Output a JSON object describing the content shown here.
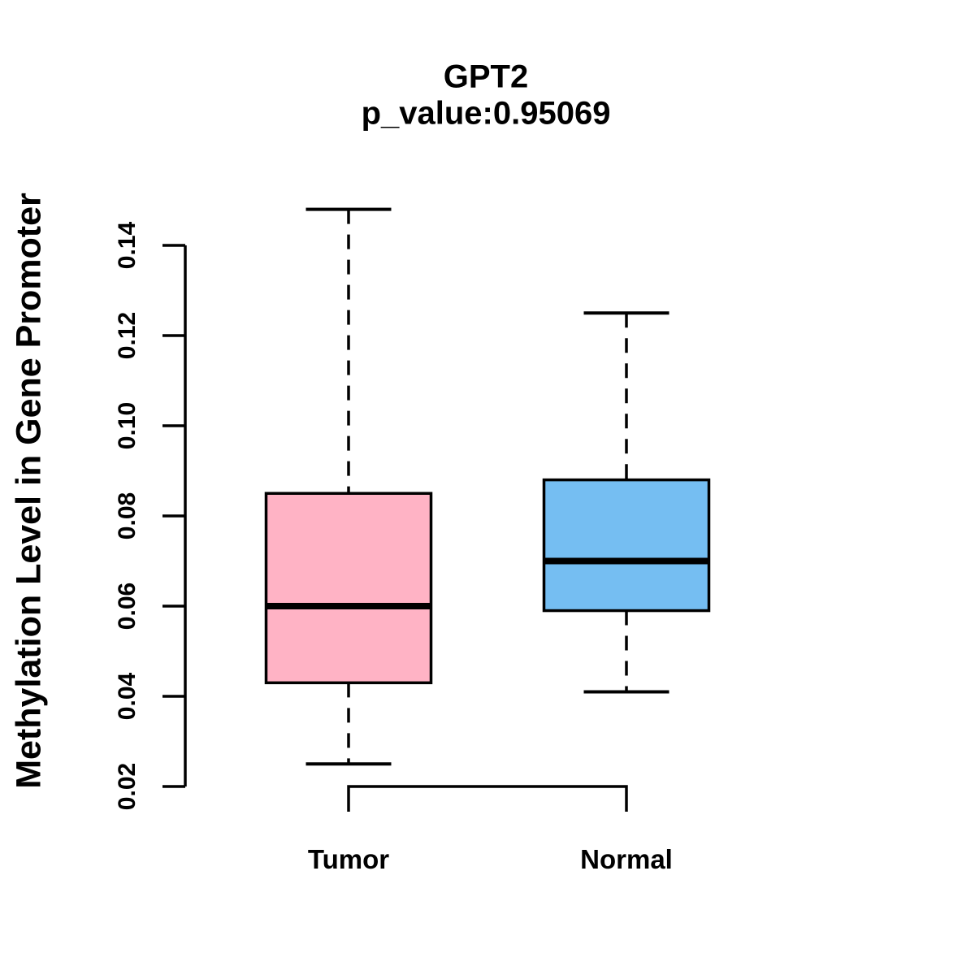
{
  "chart_data": {
    "type": "boxplot",
    "title": "GPT2",
    "subtitle": "p_value:0.95069",
    "gene": "GPT2",
    "p_value": 0.95069,
    "ylabel": "Methylation Level in Gene Promoter",
    "xlabel": "",
    "categories": [
      "Tumor",
      "Normal"
    ],
    "y_axis": {
      "ticks": [
        0.02,
        0.04,
        0.06,
        0.08,
        0.1,
        0.12,
        0.14
      ],
      "tick_labels": [
        "0.02",
        "0.04",
        "0.06",
        "0.08",
        "0.10",
        "0.12",
        "0.14"
      ],
      "range": [
        0.02,
        0.14
      ]
    },
    "series": [
      {
        "name": "Tumor",
        "color": "#FFB3C5",
        "whisker_low": 0.025,
        "q1": 0.043,
        "median": 0.06,
        "q3": 0.085,
        "whisker_high": 0.148
      },
      {
        "name": "Normal",
        "color": "#75BEF2",
        "whisker_low": 0.041,
        "q1": 0.059,
        "median": 0.07,
        "q3": 0.088,
        "whisker_high": 0.125
      }
    ],
    "grid": "off",
    "legend": "none"
  },
  "colors": {
    "stroke": "#000000",
    "background": "#FFFFFF",
    "tumor_fill": "#FFB3C5",
    "normal_fill": "#75BEF2"
  }
}
